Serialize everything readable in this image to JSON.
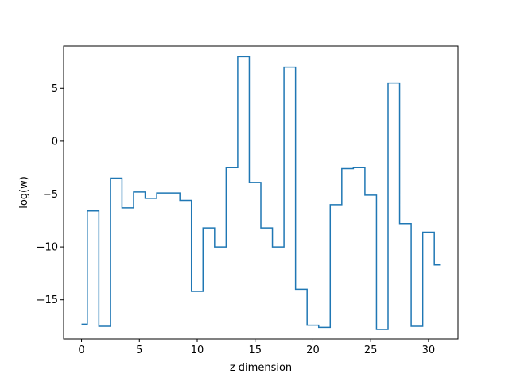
{
  "chart_data": {
    "type": "line",
    "drawstyle": "steps-mid",
    "title": "",
    "xlabel": "z dimension",
    "ylabel": "log(w)",
    "xlim": [
      -1.55,
      32.55
    ],
    "ylim": [
      -18.7,
      9.0
    ],
    "grid": false,
    "legend": false,
    "colors": {
      "series": "#1f77b4",
      "axes": "#000000",
      "background": "#ffffff"
    },
    "x_ticks": [
      {
        "value": 0,
        "label": "0"
      },
      {
        "value": 5,
        "label": "5"
      },
      {
        "value": 10,
        "label": "10"
      },
      {
        "value": 15,
        "label": "15"
      },
      {
        "value": 20,
        "label": "20"
      },
      {
        "value": 25,
        "label": "25"
      },
      {
        "value": 30,
        "label": "30"
      }
    ],
    "y_ticks": [
      {
        "value": 5,
        "label": "5"
      },
      {
        "value": 0,
        "label": "0"
      },
      {
        "value": -5,
        "label": "−5"
      },
      {
        "value": -10,
        "label": "−10"
      },
      {
        "value": -15,
        "label": "−15"
      }
    ],
    "series": [
      {
        "name": "",
        "x": [
          0,
          1,
          2,
          3,
          4,
          5,
          6,
          7,
          8,
          9,
          10,
          11,
          12,
          13,
          14,
          15,
          16,
          17,
          18,
          19,
          20,
          21,
          22,
          23,
          24,
          25,
          26,
          27,
          28,
          29,
          30,
          31
        ],
        "values": [
          -17.3,
          -6.6,
          -17.5,
          -3.5,
          -6.3,
          -4.8,
          -5.4,
          -4.9,
          -4.9,
          -5.6,
          -14.2,
          -8.2,
          -10.0,
          -2.5,
          8.0,
          -3.9,
          -8.2,
          -10.0,
          7.0,
          -14.0,
          -17.4,
          -17.6,
          -6.0,
          -2.6,
          -2.5,
          -5.1,
          -17.8,
          5.5,
          -7.8,
          -17.5,
          -8.6,
          -11.7
        ]
      }
    ]
  }
}
